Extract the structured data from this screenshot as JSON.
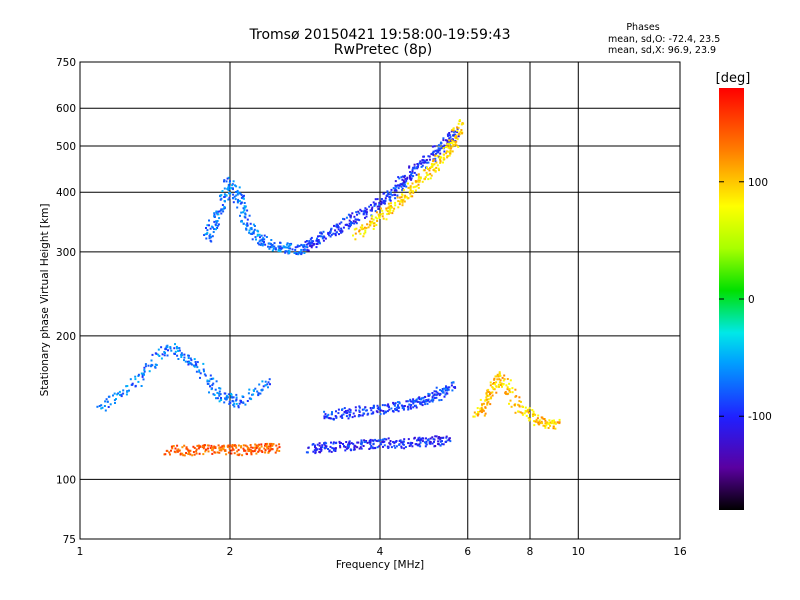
{
  "chart_data": {
    "type": "scatter",
    "title": "Tromsø 20150421 19:58:00-19:59:43",
    "subtitle": "RwPretec (8p)",
    "stats": {
      "heading": "Phases",
      "line1": "mean, sd,O: -72.4, 23.5",
      "line2": "mean, sd,X:  96.9, 23.9"
    },
    "xlabel": "Frequency [MHz]",
    "ylabel": "Stationary phase Virtual Height [km]",
    "x_scale": "log",
    "y_scale": "log",
    "xlim": [
      1,
      16
    ],
    "ylim": [
      75,
      750
    ],
    "x_ticks": [
      1,
      2,
      4,
      6,
      8,
      10,
      16
    ],
    "x_tick_labels": [
      "1",
      "2",
      "4",
      "6",
      "8",
      "10",
      "16"
    ],
    "y_ticks": [
      75,
      100,
      200,
      300,
      400,
      500,
      600,
      750
    ],
    "y_tick_labels": [
      "75",
      "100",
      "200",
      "300",
      "400",
      "500",
      "600",
      "750"
    ],
    "grid": true,
    "colorbar": {
      "label": "[deg]",
      "min": -180,
      "max": 180,
      "ticks": [
        100,
        0,
        -100
      ],
      "tick_labels": [
        "100",
        "0",
        "-100"
      ]
    },
    "traces": [
      {
        "desc": "f-region o-trace upper",
        "x": [
          2.8,
          3.0,
          3.3,
          3.6,
          4.0,
          4.3,
          4.6,
          5.0,
          5.4,
          5.7
        ],
        "y": [
          305,
          318,
          335,
          355,
          380,
          405,
          435,
          470,
          505,
          540
        ],
        "phase": -95
      },
      {
        "desc": "f-region x-trace",
        "x": [
          3.6,
          4.0,
          4.4,
          4.8,
          5.2,
          5.6,
          5.8
        ],
        "y": [
          325,
          355,
          385,
          420,
          460,
          500,
          560
        ],
        "phase": 95
      },
      {
        "desc": "f-region spread low freq",
        "x": [
          1.8,
          1.9,
          2.0,
          2.1,
          2.2,
          2.4,
          2.6,
          2.8
        ],
        "y": [
          320,
          360,
          420,
          380,
          330,
          310,
          305,
          303
        ],
        "phase": -70
      },
      {
        "desc": "e-region base trace",
        "x": [
          2.9,
          3.2,
          3.6,
          4.0,
          4.5,
          5.0,
          5.5
        ],
        "y": [
          116,
          117,
          118,
          119,
          119,
          120,
          121
        ],
        "phase": -100
      },
      {
        "desc": "sporadic E low freq",
        "x": [
          1.5,
          1.7,
          1.9,
          2.1,
          2.3,
          2.5
        ],
        "y": [
          115,
          115,
          116,
          115,
          116,
          116
        ],
        "phase": 140
      },
      {
        "desc": "multiple layers",
        "x": [
          3.1,
          3.5,
          4.0,
          4.4,
          4.8,
          5.2,
          5.6
        ],
        "y": [
          136,
          138,
          140,
          142,
          145,
          150,
          158
        ],
        "phase": -90
      },
      {
        "desc": "diffuse low freq",
        "x": [
          1.1,
          1.3,
          1.5,
          1.7,
          1.9,
          2.1,
          2.4
        ],
        "y": [
          140,
          160,
          190,
          175,
          150,
          145,
          160
        ],
        "phase": -70
      },
      {
        "desc": "x mode lower layer",
        "x": [
          6.3,
          6.6,
          7.0,
          7.6,
          8.4,
          9.2
        ],
        "y": [
          135,
          150,
          165,
          140,
          132,
          130
        ],
        "phase": 100
      }
    ],
    "colors": {
      "grid": "#000000",
      "background": "#ffffff"
    }
  }
}
